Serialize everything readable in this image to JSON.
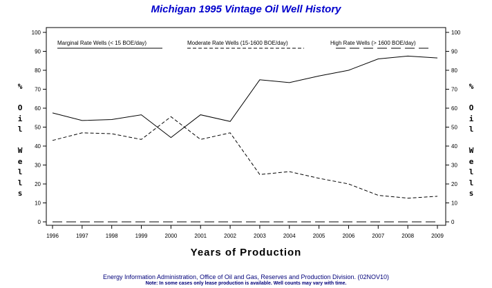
{
  "title": "Michigan 1995 Vintage Oil Well History",
  "xlabel": "Years of Production",
  "ylabel": "% Oil Wells",
  "footer": {
    "source": "Energy Information Administration, Office of Oil and Gas, Reserves and Production Division. (02NOV10)",
    "note": "Note: In some cases only lease production is available. Well counts may vary with time."
  },
  "colors": {
    "title": "#0000cc",
    "footer": "#00007a",
    "lines": "#000000"
  },
  "chart_data": {
    "type": "line",
    "title": "Michigan 1995 Vintage Oil Well History",
    "xlabel": "Years of Production",
    "ylabel": "% Oil Wells",
    "ylim": [
      0,
      100
    ],
    "yticks": [
      0,
      10,
      20,
      30,
      40,
      50,
      60,
      70,
      80,
      90,
      100
    ],
    "categories": [
      "1996",
      "1997",
      "1998",
      "1999",
      "2000",
      "2001",
      "2002",
      "2003",
      "2004",
      "2005",
      "2006",
      "2007",
      "2008",
      "2009"
    ],
    "legend_placement": "top",
    "series": [
      {
        "name": "Marginal Rate Wells (< 15 BOE/day)",
        "style": "solid",
        "values": [
          57.5,
          53.5,
          54,
          56.5,
          44.5,
          56.5,
          53,
          75,
          73.5,
          77,
          80,
          86,
          87.5,
          86.5
        ]
      },
      {
        "name": "Moderate Rate Wells (15-1600 BOE/day)",
        "style": "dashed",
        "values": [
          43,
          47,
          46.5,
          43.5,
          55.5,
          43.5,
          47,
          25,
          26.5,
          23,
          20,
          14,
          12.5,
          13.5
        ]
      },
      {
        "name": "High Rate Wells (> 1600 BOE/day)",
        "style": "longdash",
        "values": [
          0,
          0,
          0,
          0,
          0,
          0,
          0,
          0,
          0,
          0,
          0,
          0,
          0,
          0
        ]
      }
    ]
  }
}
